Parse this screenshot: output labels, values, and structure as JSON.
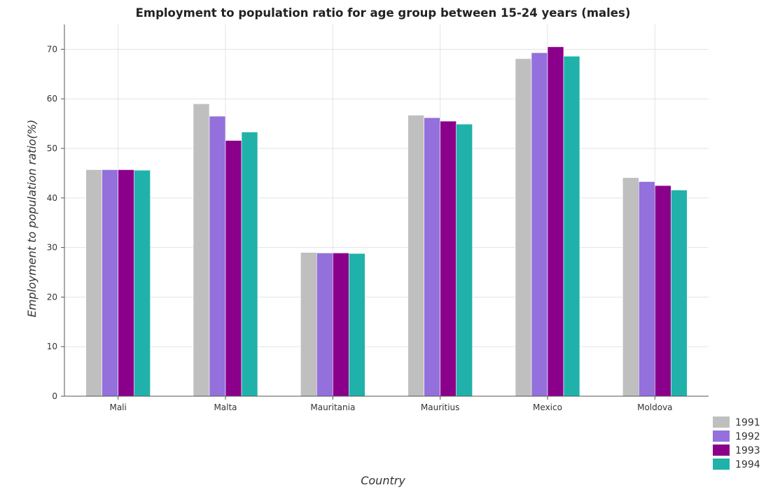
{
  "chart_data": {
    "type": "bar",
    "title": "Employment to population ratio for age group between 15-24 years (males)",
    "xlabel": "Country",
    "ylabel": "Employment to population ratio(%)",
    "ylim": [
      0,
      75
    ],
    "yticks": [
      0,
      10,
      20,
      30,
      40,
      50,
      60,
      70
    ],
    "grid": true,
    "legend_position": "bottom-right",
    "categories": [
      "Mali",
      "Malta",
      "Mauritania",
      "Mauritius",
      "Mexico",
      "Moldova"
    ],
    "series": [
      {
        "name": "1991",
        "color": "#bfbfbf",
        "values": [
          45.7,
          59.0,
          29.0,
          56.7,
          68.1,
          44.1
        ]
      },
      {
        "name": "1992",
        "color": "#9370db",
        "values": [
          45.7,
          56.5,
          28.9,
          56.2,
          69.3,
          43.3
        ]
      },
      {
        "name": "1993",
        "color": "#8b008b",
        "values": [
          45.7,
          51.6,
          28.9,
          55.5,
          70.5,
          42.5
        ]
      },
      {
        "name": "1994",
        "color": "#20b2aa",
        "values": [
          45.6,
          53.3,
          28.8,
          54.9,
          68.6,
          41.6
        ]
      }
    ]
  }
}
